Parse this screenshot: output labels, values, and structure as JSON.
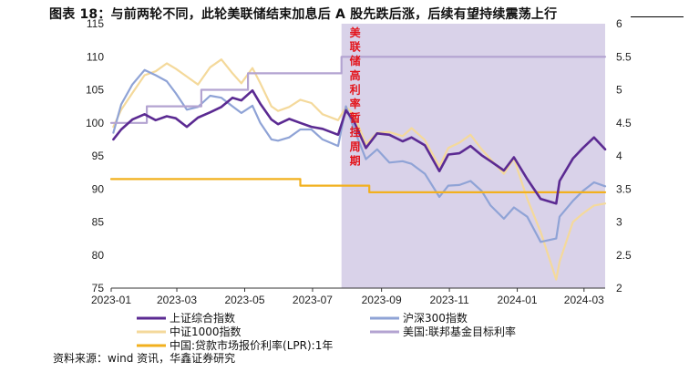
{
  "title": "图表 18：与前两轮不同，此轮美联储结束加息后 A 股先跌后涨，后续有望持续震荡上行",
  "source": "资料来源：wind 资讯，华鑫证券研究",
  "chart_data": {
    "type": "line",
    "x_ticks": [
      "2023-01",
      "2023-03",
      "2023-05",
      "2023-07",
      "2023-09",
      "2023-11",
      "2024-01",
      "2024-03"
    ],
    "x_range": [
      "2023-01-01",
      "2024-03-20"
    ],
    "y_left": {
      "range": [
        75,
        115
      ],
      "ticks": [
        75,
        80,
        85,
        90,
        95,
        100,
        105,
        110,
        115
      ]
    },
    "y_right": {
      "range": [
        2,
        6
      ],
      "ticks": [
        "2",
        "2.5",
        "3",
        "3.5",
        "4",
        "4.5",
        "5",
        "5.5",
        "6"
      ]
    },
    "shaded_period": {
      "start": "2023-07-27",
      "end": "2024-03-20",
      "color": "#d9d2e9",
      "label": [
        "美",
        "联",
        "储",
        "高",
        "利",
        "率",
        "暂",
        "挂",
        "周",
        "期"
      ]
    },
    "series": [
      {
        "name": "上证综合指数",
        "axis": "left",
        "color": "#5b2a92",
        "points": [
          [
            "2023-01-03",
            97.5
          ],
          [
            "2023-01-10",
            99.0
          ],
          [
            "2023-01-20",
            100.5
          ],
          [
            "2023-01-31",
            101.3
          ],
          [
            "2023-02-10",
            100.4
          ],
          [
            "2023-02-20",
            101.0
          ],
          [
            "2023-02-28",
            100.7
          ],
          [
            "2023-03-10",
            99.4
          ],
          [
            "2023-03-20",
            100.8
          ],
          [
            "2023-03-31",
            101.6
          ],
          [
            "2023-04-10",
            102.4
          ],
          [
            "2023-04-20",
            103.8
          ],
          [
            "2023-04-28",
            103.4
          ],
          [
            "2023-05-08",
            104.9
          ],
          [
            "2023-05-15",
            102.9
          ],
          [
            "2023-05-25",
            100.5
          ],
          [
            "2023-05-31",
            99.8
          ],
          [
            "2023-06-10",
            100.6
          ],
          [
            "2023-06-20",
            100.0
          ],
          [
            "2023-06-30",
            99.4
          ],
          [
            "2023-07-10",
            99.1
          ],
          [
            "2023-07-24",
            98.2
          ],
          [
            "2023-07-31",
            101.9
          ],
          [
            "2023-08-07",
            100.3
          ],
          [
            "2023-08-18",
            96.2
          ],
          [
            "2023-08-28",
            98.4
          ],
          [
            "2023-09-08",
            98.2
          ],
          [
            "2023-09-20",
            97.2
          ],
          [
            "2023-09-28",
            97.8
          ],
          [
            "2023-10-10",
            96.6
          ],
          [
            "2023-10-23",
            92.7
          ],
          [
            "2023-10-31",
            95.2
          ],
          [
            "2023-11-10",
            95.4
          ],
          [
            "2023-11-20",
            96.5
          ],
          [
            "2023-11-30",
            95.1
          ],
          [
            "2023-12-08",
            94.2
          ],
          [
            "2023-12-20",
            92.8
          ],
          [
            "2023-12-29",
            94.8
          ],
          [
            "2024-01-10",
            91.5
          ],
          [
            "2024-01-22",
            88.5
          ],
          [
            "2024-02-05",
            87.8
          ],
          [
            "2024-02-08",
            91.2
          ],
          [
            "2024-02-20",
            94.6
          ],
          [
            "2024-02-29",
            96.2
          ],
          [
            "2024-03-10",
            97.8
          ],
          [
            "2024-03-20",
            96.0
          ]
        ]
      },
      {
        "name": "沪深300指数",
        "axis": "left",
        "color": "#8fa3d6",
        "points": [
          [
            "2023-01-03",
            98.5
          ],
          [
            "2023-01-10",
            102.8
          ],
          [
            "2023-01-20",
            105.8
          ],
          [
            "2023-01-31",
            108.0
          ],
          [
            "2023-02-10",
            107.2
          ],
          [
            "2023-02-20",
            106.3
          ],
          [
            "2023-02-28",
            104.5
          ],
          [
            "2023-03-10",
            102.0
          ],
          [
            "2023-03-20",
            102.4
          ],
          [
            "2023-03-31",
            104.1
          ],
          [
            "2023-04-10",
            103.8
          ],
          [
            "2023-04-20",
            102.5
          ],
          [
            "2023-04-28",
            101.5
          ],
          [
            "2023-05-08",
            102.6
          ],
          [
            "2023-05-15",
            100.0
          ],
          [
            "2023-05-25",
            97.5
          ],
          [
            "2023-05-31",
            97.3
          ],
          [
            "2023-06-10",
            97.8
          ],
          [
            "2023-06-20",
            99.0
          ],
          [
            "2023-06-30",
            99.0
          ],
          [
            "2023-07-10",
            97.5
          ],
          [
            "2023-07-24",
            96.5
          ],
          [
            "2023-07-31",
            102.5
          ],
          [
            "2023-08-07",
            99.2
          ],
          [
            "2023-08-18",
            94.5
          ],
          [
            "2023-08-28",
            96.0
          ],
          [
            "2023-09-08",
            94.0
          ],
          [
            "2023-09-20",
            94.2
          ],
          [
            "2023-09-28",
            93.8
          ],
          [
            "2023-10-10",
            92.3
          ],
          [
            "2023-10-23",
            88.8
          ],
          [
            "2023-10-31",
            90.5
          ],
          [
            "2023-11-10",
            90.6
          ],
          [
            "2023-11-20",
            91.2
          ],
          [
            "2023-11-30",
            89.7
          ],
          [
            "2023-12-08",
            87.5
          ],
          [
            "2023-12-20",
            85.5
          ],
          [
            "2023-12-29",
            87.2
          ],
          [
            "2024-01-10",
            85.8
          ],
          [
            "2024-01-22",
            82.0
          ],
          [
            "2024-02-05",
            82.5
          ],
          [
            "2024-02-08",
            85.8
          ],
          [
            "2024-02-20",
            88.2
          ],
          [
            "2024-02-29",
            89.7
          ],
          [
            "2024-03-10",
            91.0
          ],
          [
            "2024-03-20",
            90.4
          ]
        ]
      },
      {
        "name": "中证1000指数",
        "axis": "left",
        "color": "#f4d99b",
        "points": [
          [
            "2023-01-03",
            99.4
          ],
          [
            "2023-01-10",
            102.0
          ],
          [
            "2023-01-20",
            104.5
          ],
          [
            "2023-01-31",
            107.2
          ],
          [
            "2023-02-10",
            107.8
          ],
          [
            "2023-02-20",
            109.0
          ],
          [
            "2023-02-28",
            108.2
          ],
          [
            "2023-03-10",
            107.0
          ],
          [
            "2023-03-20",
            105.8
          ],
          [
            "2023-03-31",
            108.4
          ],
          [
            "2023-04-10",
            109.6
          ],
          [
            "2023-04-20",
            107.5
          ],
          [
            "2023-04-28",
            106.0
          ],
          [
            "2023-05-08",
            108.3
          ],
          [
            "2023-05-15",
            106.0
          ],
          [
            "2023-05-25",
            102.5
          ],
          [
            "2023-05-31",
            101.8
          ],
          [
            "2023-06-10",
            102.4
          ],
          [
            "2023-06-20",
            103.5
          ],
          [
            "2023-06-30",
            103.0
          ],
          [
            "2023-07-10",
            101.3
          ],
          [
            "2023-07-24",
            100.4
          ],
          [
            "2023-07-31",
            102.4
          ],
          [
            "2023-08-07",
            101.3
          ],
          [
            "2023-08-18",
            96.8
          ],
          [
            "2023-08-28",
            98.5
          ],
          [
            "2023-09-08",
            98.6
          ],
          [
            "2023-09-20",
            98.0
          ],
          [
            "2023-09-28",
            99.2
          ],
          [
            "2023-10-10",
            97.4
          ],
          [
            "2023-10-23",
            93.4
          ],
          [
            "2023-10-31",
            96.2
          ],
          [
            "2023-11-10",
            97.0
          ],
          [
            "2023-11-20",
            98.2
          ],
          [
            "2023-11-30",
            96.0
          ],
          [
            "2023-12-08",
            94.5
          ],
          [
            "2023-12-20",
            92.3
          ],
          [
            "2023-12-29",
            94.6
          ],
          [
            "2024-01-10",
            88.5
          ],
          [
            "2024-01-22",
            83.5
          ],
          [
            "2024-02-05",
            76.3
          ],
          [
            "2024-02-08",
            79.0
          ],
          [
            "2024-02-20",
            85.0
          ],
          [
            "2024-02-29",
            86.3
          ],
          [
            "2024-03-10",
            87.5
          ],
          [
            "2024-03-20",
            87.8
          ]
        ]
      },
      {
        "name": "美国:联邦基金目标利率",
        "axis": "right",
        "color": "#b3a3d1",
        "points": [
          [
            "2023-01-01",
            4.5
          ],
          [
            "2023-02-02",
            4.5
          ],
          [
            "2023-02-02",
            4.75
          ],
          [
            "2023-03-23",
            4.75
          ],
          [
            "2023-03-23",
            5.0
          ],
          [
            "2023-05-04",
            5.0
          ],
          [
            "2023-05-04",
            5.25
          ],
          [
            "2023-07-27",
            5.25
          ],
          [
            "2023-07-27",
            5.5
          ],
          [
            "2024-03-20",
            5.5
          ]
        ]
      },
      {
        "name": "中国:贷款市场报价利率(LPR):1年",
        "axis": "right",
        "color": "#f2b01e",
        "points": [
          [
            "2023-01-01",
            3.65
          ],
          [
            "2023-06-20",
            3.65
          ],
          [
            "2023-06-20",
            3.55
          ],
          [
            "2023-08-21",
            3.55
          ],
          [
            "2023-08-21",
            3.45
          ],
          [
            "2024-03-20",
            3.45
          ]
        ]
      }
    ],
    "legend": [
      {
        "name": "上证综合指数",
        "color": "#5b2a92"
      },
      {
        "name": "沪深300指数",
        "color": "#8fa3d6"
      },
      {
        "name": "中证1000指数",
        "color": "#f4d99b"
      },
      {
        "name": "美国:联邦基金目标利率",
        "color": "#b3a3d1"
      },
      {
        "name": "中国:贷款市场报价利率(LPR):1年",
        "color": "#f2b01e"
      }
    ]
  }
}
